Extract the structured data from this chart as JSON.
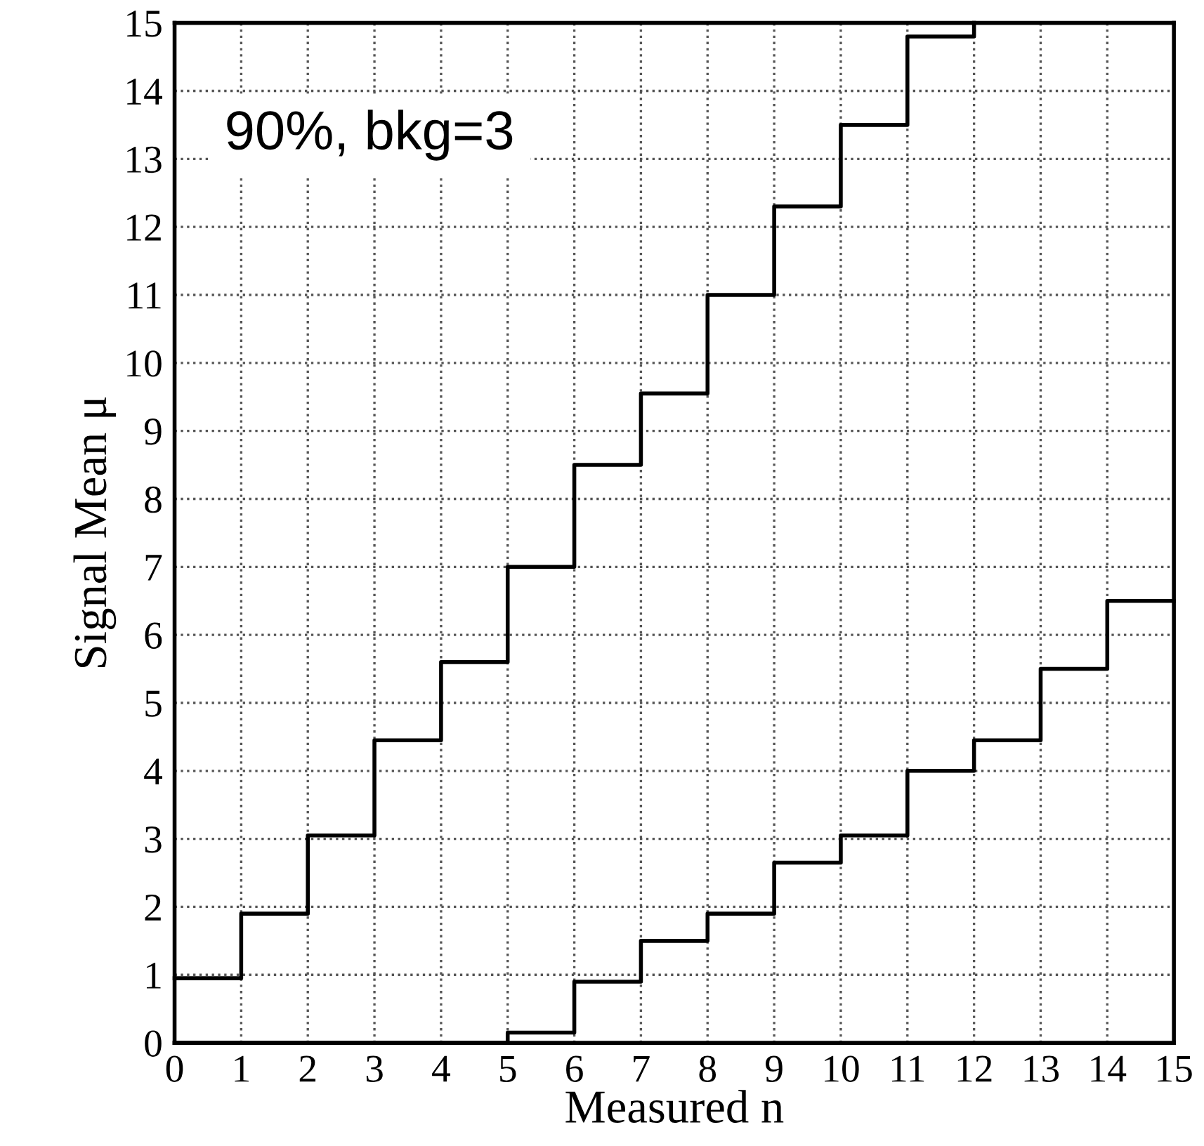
{
  "chart_data": {
    "type": "step",
    "xlabel": "Measured n",
    "ylabel": "Signal Mean μ",
    "series": [
      {
        "color": "#000000",
        "x": [
          0,
          1,
          2,
          3,
          4,
          5,
          6,
          7,
          8,
          9,
          10,
          11,
          12
        ],
        "values": [
          0.95,
          1.9,
          3.05,
          4.45,
          5.6,
          7.0,
          8.5,
          9.55,
          11.0,
          12.3,
          13.5,
          14.8,
          15
        ]
      },
      {
        "color": "#000000",
        "x": [
          0,
          1,
          2,
          3,
          4,
          5,
          6,
          7,
          8,
          9,
          10,
          11,
          12,
          13,
          14,
          15
        ],
        "values": [
          0,
          0,
          0,
          0,
          0,
          0.15,
          0.9,
          1.5,
          1.9,
          2.65,
          3.05,
          4.0,
          4.45,
          5.5,
          6.5,
          6.5
        ]
      }
    ],
    "xlim": [
      0,
      15
    ],
    "xticks": [
      0,
      1,
      2,
      3,
      4,
      5,
      6,
      7,
      8,
      9,
      10,
      11,
      12,
      13,
      14,
      15
    ],
    "ylim": [
      0,
      15
    ],
    "yticks": [
      0,
      1,
      2,
      3,
      4,
      5,
      6,
      7,
      8,
      9,
      10,
      11,
      12,
      13,
      14,
      15
    ],
    "grid": true,
    "line_style": "solid",
    "marker": "none",
    "annotations": [
      "90%, bkg=3"
    ]
  }
}
